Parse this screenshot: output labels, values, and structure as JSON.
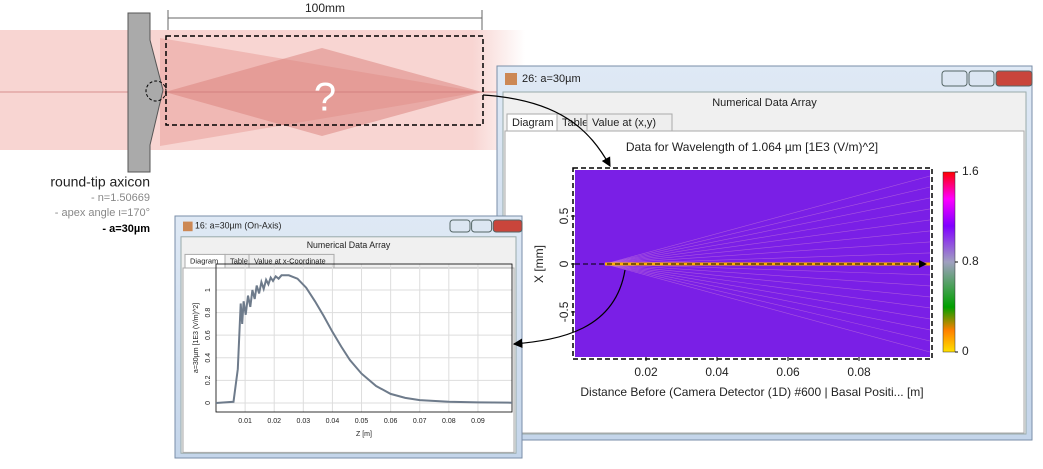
{
  "diagram": {
    "dimension": "100mm",
    "question": "?",
    "title": "round-tip axicon",
    "params": [
      "- n=1.50669",
      "- apex angle ι=170°",
      "- a=30µm"
    ]
  },
  "window_main": {
    "title": "26: a=30µm",
    "header": "Numerical Data Array",
    "tabs": [
      "Diagram",
      "Table",
      "Value at (x,y)"
    ],
    "chart": {
      "type": "heatmap",
      "title": "Data for Wavelength of 1.064 µm  [1E3 (V/m)^2]",
      "x_label": "Distance Before (Camera Detector (1D) #600 | Basal Positi... [m]",
      "y_label": "X [mm]",
      "xlim": [
        0,
        0.1
      ],
      "xticks": [
        0.02,
        0.04,
        0.06,
        0.08
      ],
      "ylim": [
        -0.97,
        0.98
      ],
      "yticks": [
        -0.5,
        0,
        0.5
      ],
      "colorbar_lim": [
        0,
        1.6
      ],
      "colorbar_ticks": [
        0,
        0.8,
        1.6
      ]
    }
  },
  "window_plot": {
    "title": "16: a=30µm (On-Axis)",
    "header": "Numerical Data Array",
    "tabs": [
      "Diagram",
      "Table",
      "Value at x-Coordinate"
    ],
    "chart": {
      "type": "line",
      "x_label": "Z [m]",
      "y_label": "a=30µm [1E3 (V/m)^2]",
      "color": "#6e7b8b",
      "grid": true,
      "xlim": [
        0,
        0.1017
      ],
      "xticks": [
        0.01,
        0.02,
        0.03,
        0.04,
        0.05,
        0.06,
        0.07,
        0.08,
        0.09
      ],
      "ylim": [
        -0.08,
        1.23
      ],
      "yticks": [
        0,
        0.2,
        0.4,
        0.6,
        0.8,
        1
      ],
      "x": [
        0,
        0.006,
        0.0075,
        0.0085,
        0.009,
        0.0095,
        0.0102,
        0.011,
        0.0118,
        0.0125,
        0.0133,
        0.014,
        0.0148,
        0.0156,
        0.0164,
        0.0172,
        0.018,
        0.0188,
        0.0196,
        0.0205,
        0.0215,
        0.0225,
        0.025,
        0.028,
        0.031,
        0.034,
        0.037,
        0.04,
        0.043,
        0.046,
        0.05,
        0.055,
        0.06,
        0.065,
        0.07,
        0.08,
        0.09,
        0.1017
      ],
      "y": [
        0,
        0.01,
        0.3,
        0.88,
        0.7,
        0.9,
        0.78,
        0.95,
        0.85,
        1.0,
        0.92,
        1.04,
        0.97,
        1.07,
        1.01,
        1.09,
        1.05,
        1.11,
        1.08,
        1.12,
        1.1,
        1.13,
        1.13,
        1.1,
        1.02,
        0.9,
        0.77,
        0.63,
        0.5,
        0.38,
        0.26,
        0.15,
        0.08,
        0.045,
        0.025,
        0.01,
        0.005,
        0.002
      ]
    }
  }
}
